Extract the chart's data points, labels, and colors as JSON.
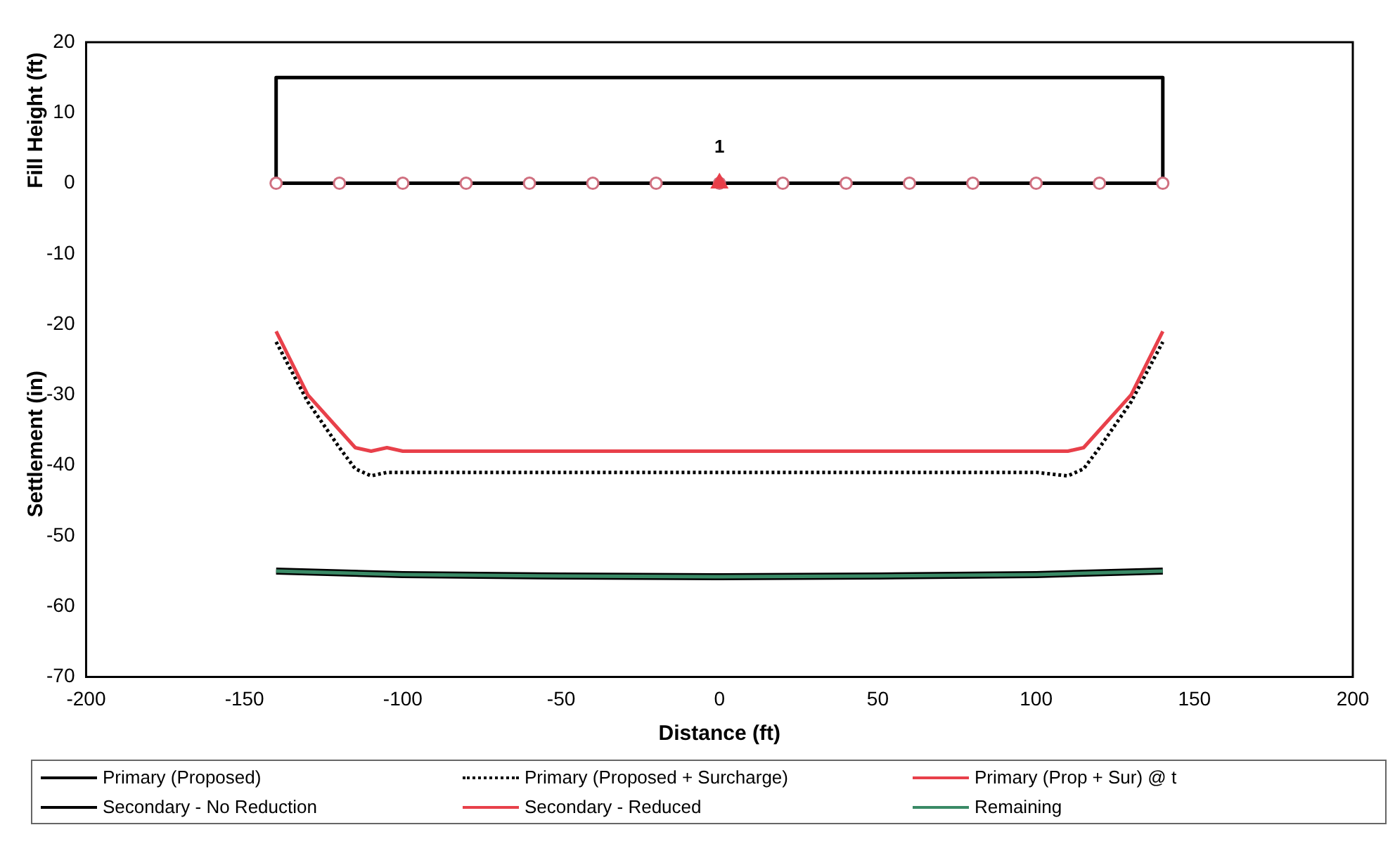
{
  "chart_data": {
    "type": "line",
    "xlabel": "Distance (ft)",
    "ylabel": "Settlement (in)",
    "annotations": [
      "Fill Height (ft)",
      {
        "text": "1",
        "x": 0,
        "y": 0
      }
    ],
    "xlim": [
      -200,
      200
    ],
    "xticks": [
      -200,
      -150,
      -100,
      -50,
      0,
      50,
      100,
      150,
      200
    ],
    "ylim": [
      -70,
      20
    ],
    "yticks": [
      -70,
      -60,
      -50,
      -40,
      -30,
      -20,
      -10,
      0,
      10,
      20
    ],
    "grid": false,
    "legend": "bottom",
    "line_style": "solid",
    "series": [
      {
        "color": "#000000",
        "x": [
          -140,
          -140,
          140,
          140
        ],
        "values": [
          0,
          15,
          15,
          0
        ]
      },
      {
        "color": "#000000",
        "marker": "circle",
        "x": [
          -140,
          -120,
          -100,
          -80,
          -60,
          -40,
          -20,
          0,
          20,
          40,
          60,
          80,
          100,
          120,
          140
        ],
        "values": [
          0,
          0,
          0,
          0,
          0,
          0,
          0,
          0,
          0,
          0,
          0,
          0,
          0,
          0,
          0
        ]
      },
      {
        "type": "scatter",
        "color": "#e8404a",
        "marker": "triangle",
        "x": [
          0
        ],
        "values": [
          0
        ]
      },
      {
        "name": "Primary (Proposed)",
        "color": "#000000"
      },
      {
        "name": "Primary (Proposed + Surcharge)",
        "color": "#000000",
        "line_style": "dotted",
        "x": [
          -140,
          -130,
          -120,
          -115,
          -110,
          -105,
          -100,
          -50,
          0,
          50,
          100,
          110,
          115,
          120,
          130,
          140
        ],
        "values": [
          -22.5,
          -31,
          -37.5,
          -40.5,
          -41.5,
          -41,
          -41,
          -41,
          -41,
          -41,
          -41,
          -41.5,
          -40.5,
          -37.5,
          -31,
          -22.5
        ]
      },
      {
        "name": "Primary (Prop + Sur) @ t",
        "color": "#e8404a",
        "x": [
          -140,
          -130,
          -120,
          -115,
          -110,
          -105,
          -100,
          -50,
          0,
          50,
          100,
          110,
          115,
          120,
          130,
          140
        ],
        "values": [
          -21,
          -30,
          -35,
          -37.5,
          -38,
          -37.5,
          -38,
          -38,
          -38,
          -38,
          -38,
          -38,
          -37.5,
          -35,
          -30,
          -21
        ]
      },
      {
        "name": "Secondary - No Reduction",
        "color": "#000000",
        "x": [
          -140,
          -100,
          -50,
          0,
          50,
          100,
          140
        ],
        "values": [
          -55,
          -55.5,
          -55.7,
          -55.8,
          -55.7,
          -55.5,
          -55
        ]
      },
      {
        "name": "Secondary - Reduced",
        "color": "#e8404a"
      },
      {
        "name": "Remaining",
        "color": "#3a8a66",
        "x": [
          -140,
          -100,
          -50,
          0,
          50,
          100,
          140
        ],
        "values": [
          -55,
          -55.5,
          -55.7,
          -55.8,
          -55.7,
          -55.5,
          -55
        ]
      }
    ]
  }
}
